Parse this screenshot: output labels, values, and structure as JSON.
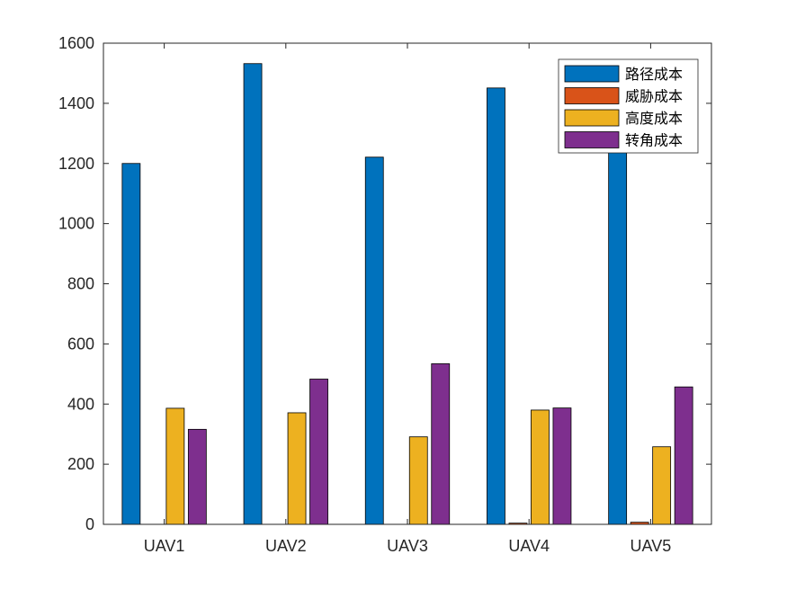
{
  "chart_data": {
    "type": "bar",
    "categories": [
      "UAV1",
      "UAV2",
      "UAV3",
      "UAV4",
      "UAV5"
    ],
    "series": [
      {
        "name": "路径成本",
        "color": "#0072BD",
        "values": [
          1200,
          1532,
          1221,
          1451,
          1301
        ]
      },
      {
        "name": "威胁成本",
        "color": "#D95319",
        "values": [
          0,
          0,
          0,
          4,
          7
        ]
      },
      {
        "name": "高度成本",
        "color": "#EDB120",
        "values": [
          386,
          371,
          291,
          380,
          258
        ]
      },
      {
        "name": "转角成本",
        "color": "#7E2F8E",
        "values": [
          316,
          483,
          534,
          387,
          457
        ]
      }
    ],
    "ylim": [
      0,
      1600
    ],
    "yticks": [
      0,
      200,
      400,
      600,
      800,
      1000,
      1200,
      1400,
      1600
    ],
    "legend_position": "top-right",
    "grid": false
  }
}
